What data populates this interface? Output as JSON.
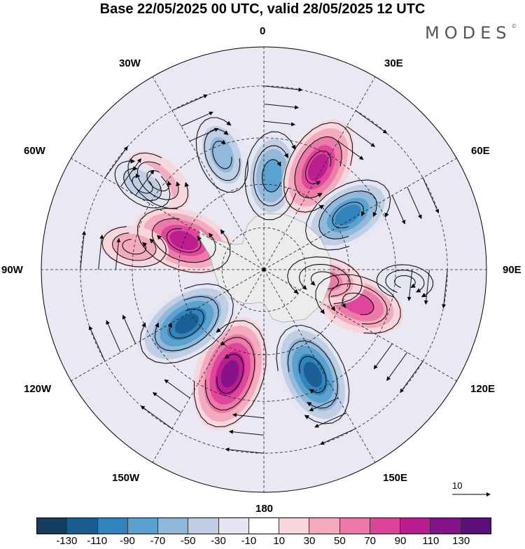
{
  "title": "Base 22/05/2025 00 UTC, valid 28/05/2025 12 UTC",
  "brand": "MODES",
  "brand_mark": "©",
  "longitude_labels": {
    "n0": "0",
    "e30": "30E",
    "e60": "60E",
    "e90": "90E",
    "e120": "120E",
    "e150": "150E",
    "s180": "180",
    "w150": "150W",
    "w120": "120W",
    "w90": "90W",
    "w60": "60W",
    "w30": "30W"
  },
  "reference_vector": {
    "value": "10"
  },
  "colorbar": {
    "colors": [
      "#163d5c",
      "#1a5e91",
      "#3083bc",
      "#5aa0cf",
      "#8fb7da",
      "#bfcde4",
      "#e5e6f2",
      "#ffffff",
      "#f7d6dc",
      "#f3a9be",
      "#ec78a7",
      "#df449b",
      "#b81c8e",
      "#85128a",
      "#5a0e78"
    ],
    "ticks": [
      "-130",
      "-110",
      "-90",
      "-70",
      "-50",
      "-30",
      "-10",
      "10",
      "30",
      "50",
      "70",
      "90",
      "110",
      "130"
    ]
  },
  "map": {
    "projection": "south polar stereographic",
    "anomalies": [
      {
        "lon": 5,
        "lat": -57,
        "value": -80
      },
      {
        "lon": -20,
        "lat": -48,
        "value": -60
      },
      {
        "lon": 28,
        "lat": -50,
        "value": 95
      },
      {
        "lon": 57,
        "lat": -55,
        "value": -90
      },
      {
        "lon": 110,
        "lat": -55,
        "value": 80
      },
      {
        "lon": 100,
        "lat": -68,
        "value": 55
      },
      {
        "lon": 155,
        "lat": -50,
        "value": -110
      },
      {
        "lon": -162,
        "lat": -52,
        "value": 120
      },
      {
        "lon": -125,
        "lat": -57,
        "value": -110
      },
      {
        "lon": -70,
        "lat": -60,
        "value": 95
      },
      {
        "lon": -80,
        "lat": -45,
        "value": 35
      },
      {
        "lon": -50,
        "lat": -43,
        "value": 45
      },
      {
        "lon": -55,
        "lat": -40,
        "value": -30
      },
      {
        "lon": 95,
        "lat": -42,
        "value": -20
      }
    ]
  }
}
